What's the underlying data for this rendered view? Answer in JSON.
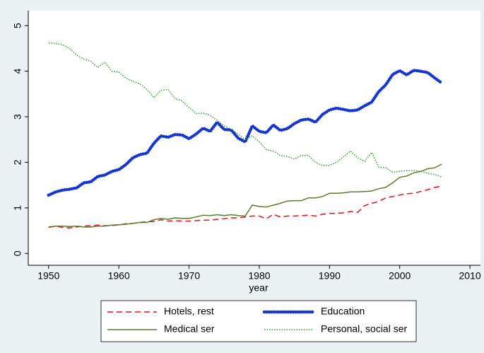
{
  "chart_data": {
    "type": "line",
    "x_label": "year",
    "x": [
      1950,
      1951,
      1952,
      1953,
      1954,
      1955,
      1956,
      1957,
      1958,
      1959,
      1960,
      1961,
      1962,
      1963,
      1964,
      1965,
      1966,
      1967,
      1968,
      1969,
      1970,
      1971,
      1972,
      1973,
      1974,
      1975,
      1976,
      1977,
      1978,
      1979,
      1980,
      1981,
      1982,
      1983,
      1984,
      1985,
      1986,
      1987,
      1988,
      1989,
      1990,
      1991,
      1992,
      1993,
      1994,
      1995,
      1996,
      1997,
      1998,
      1999,
      2000,
      2001,
      2002,
      2003,
      2004,
      2005,
      2006
    ],
    "series": [
      {
        "name": "Hotels, rest",
        "color": "#e8101a",
        "line_style": "dashed",
        "values": [
          0.57,
          0.6,
          0.57,
          0.56,
          0.58,
          0.6,
          0.61,
          0.62,
          0.61,
          0.61,
          0.63,
          0.65,
          0.66,
          0.68,
          0.7,
          0.7,
          0.74,
          0.71,
          0.72,
          0.71,
          0.71,
          0.72,
          0.73,
          0.73,
          0.75,
          0.76,
          0.78,
          0.78,
          0.8,
          0.82,
          0.82,
          0.76,
          0.86,
          0.8,
          0.82,
          0.82,
          0.83,
          0.84,
          0.82,
          0.86,
          0.88,
          0.88,
          0.89,
          0.92,
          0.9,
          1.05,
          1.1,
          1.14,
          1.22,
          1.25,
          1.28,
          1.31,
          1.32,
          1.36,
          1.4,
          1.45,
          1.48
        ]
      },
      {
        "name": "Education",
        "color": "#1535d0",
        "line_style": "beaded",
        "values": [
          1.28,
          1.35,
          1.39,
          1.41,
          1.44,
          1.55,
          1.57,
          1.69,
          1.72,
          1.8,
          1.84,
          1.95,
          2.1,
          2.17,
          2.2,
          2.42,
          2.58,
          2.55,
          2.61,
          2.6,
          2.52,
          2.62,
          2.75,
          2.68,
          2.88,
          2.72,
          2.71,
          2.53,
          2.45,
          2.8,
          2.68,
          2.65,
          2.82,
          2.7,
          2.74,
          2.85,
          2.93,
          2.95,
          2.88,
          3.05,
          3.15,
          3.19,
          3.16,
          3.13,
          3.15,
          3.24,
          3.32,
          3.55,
          3.7,
          3.93,
          4.01,
          3.92,
          4.02,
          4.0,
          3.97,
          3.85,
          3.74
        ]
      },
      {
        "name": "Medical ser",
        "color": "#5a7a2e",
        "line_style": "solid",
        "values": [
          0.58,
          0.6,
          0.6,
          0.59,
          0.6,
          0.58,
          0.58,
          0.6,
          0.6,
          0.62,
          0.63,
          0.64,
          0.66,
          0.68,
          0.68,
          0.74,
          0.77,
          0.75,
          0.78,
          0.77,
          0.77,
          0.8,
          0.84,
          0.83,
          0.85,
          0.83,
          0.85,
          0.83,
          0.82,
          1.06,
          1.03,
          1.02,
          1.06,
          1.1,
          1.15,
          1.16,
          1.16,
          1.22,
          1.22,
          1.25,
          1.32,
          1.32,
          1.33,
          1.35,
          1.35,
          1.36,
          1.37,
          1.42,
          1.45,
          1.55,
          1.67,
          1.7,
          1.77,
          1.8,
          1.86,
          1.88,
          1.96
        ]
      },
      {
        "name": "Personal, social ser",
        "color": "#2e9a2e",
        "line_style": "dotted",
        "values": [
          4.62,
          4.61,
          4.58,
          4.5,
          4.35,
          4.27,
          4.22,
          4.08,
          4.2,
          4.0,
          3.98,
          3.85,
          3.78,
          3.72,
          3.6,
          3.42,
          3.58,
          3.6,
          3.4,
          3.35,
          3.2,
          3.07,
          3.08,
          3.03,
          2.92,
          2.8,
          2.72,
          2.62,
          2.5,
          2.58,
          2.45,
          2.28,
          2.25,
          2.15,
          2.13,
          2.07,
          2.15,
          2.15,
          2.0,
          1.93,
          1.93,
          2.0,
          2.12,
          2.25,
          2.1,
          2.02,
          2.22,
          1.9,
          1.88,
          1.78,
          1.8,
          1.82,
          1.82,
          1.8,
          1.76,
          1.73,
          1.68
        ]
      }
    ],
    "xlim": [
      1947.1,
      2011.5
    ],
    "xticks": [
      1950,
      1960,
      1970,
      1980,
      1990,
      2000,
      2010
    ],
    "ylim": [
      -0.26,
      5.33
    ],
    "yticks": [
      0,
      1,
      2,
      3,
      4,
      5
    ],
    "legend": "bottom"
  }
}
